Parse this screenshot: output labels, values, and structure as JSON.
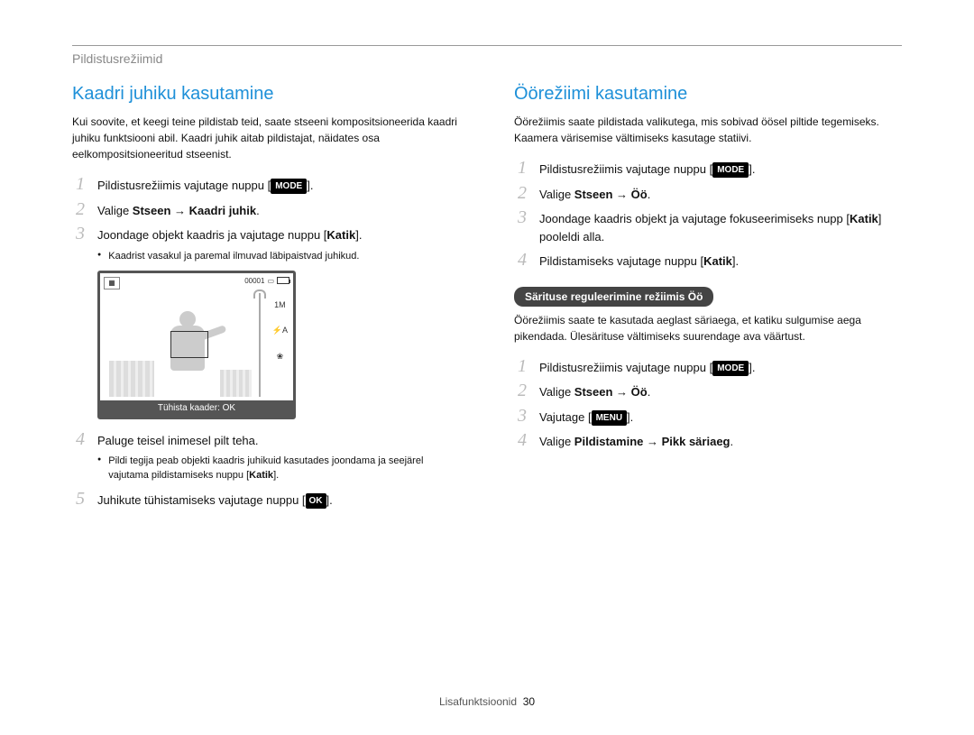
{
  "breadcrumb": "Pildistusrežiimid",
  "left": {
    "title": "Kaadri juhiku kasutamine",
    "title_color": "#1e90d8",
    "intro": "Kui soovite, et keegi teine pildistab teid, saate stseeni kompositsioneerida kaadri juhiku funktsiooni abil. Kaadri juhik aitab pildistajat, näidates osa eelkompositsioneeritud stseenist.",
    "step1_pre": "Pildistusrežiimis vajutage nuppu [",
    "step1_badge": "MODE",
    "step1_post": "].",
    "step2_pre": "Valige ",
    "step2_bold": "Stseen → Kaadri juhik",
    "step2_post": ".",
    "step3_pre": "Joondage objekt kaadris ja vajutage nuppu [",
    "step3_bold": "Katik",
    "step3_post": "].",
    "bullet1": "Kaadrist vasakul ja paremal ilmuvad läbipaistvad juhikud.",
    "illus": {
      "counter": "00001",
      "icon_letters": "1M",
      "right_icons": [
        "1M",
        "⚡A",
        "❀"
      ],
      "caption": "Tühista kaader: OK"
    },
    "step4": "Paluge teisel inimesel pilt teha.",
    "bullet2_a": "Pildi tegija peab objekti kaadris juhikuid kasutades joondama ja seejärel vajutama pildistamiseks nuppu [",
    "bullet2_bold": "Katik",
    "bullet2_b": "].",
    "step5_pre": "Juhikute tühistamiseks vajutage nuppu [",
    "step5_badge": "OK",
    "step5_post": "]."
  },
  "right": {
    "title": "Öörežiimi kasutamine",
    "title_color": "#1e90d8",
    "intro": "Öörežiimis saate pildistada valikutega, mis sobivad öösel piltide tegemiseks. Kaamera värisemise vältimiseks kasutage statiivi.",
    "a_step1_pre": "Pildistusrežiimis vajutage nuppu [",
    "a_step1_badge": "MODE",
    "a_step1_post": "].",
    "a_step2_pre": "Valige ",
    "a_step2_bold": "Stseen → Öö",
    "a_step2_post": ".",
    "a_step3_a": "Joondage kaadris objekt ja vajutage fokuseerimiseks nupp [",
    "a_step3_bold": "Katik",
    "a_step3_b": "] pooleldi alla.",
    "a_step4_pre": "Pildistamiseks vajutage nuppu [",
    "a_step4_bold": "Katik",
    "a_step4_post": "].",
    "sub_bar": "Särituse reguleerimine režiimis Öö",
    "sub_intro": "Öörežiimis saate te kasutada aeglast säriaega, et katiku sulgumise aega pikendada. Ülesärituse vältimiseks suurendage ava väärtust.",
    "b_step1_pre": "Pildistusrežiimis vajutage nuppu [",
    "b_step1_badge": "MODE",
    "b_step1_post": "].",
    "b_step2_pre": "Valige ",
    "b_step2_bold": "Stseen → Öö",
    "b_step2_post": ".",
    "b_step3_pre": "Vajutage [",
    "b_step3_badge": "MENU",
    "b_step3_post": "].",
    "b_step4_pre": "Valige ",
    "b_step4_bold": "Pildistamine → Pikk säriaeg",
    "b_step4_post": "."
  },
  "footer": {
    "label": "Lisafunktsioonid",
    "page": "30"
  }
}
